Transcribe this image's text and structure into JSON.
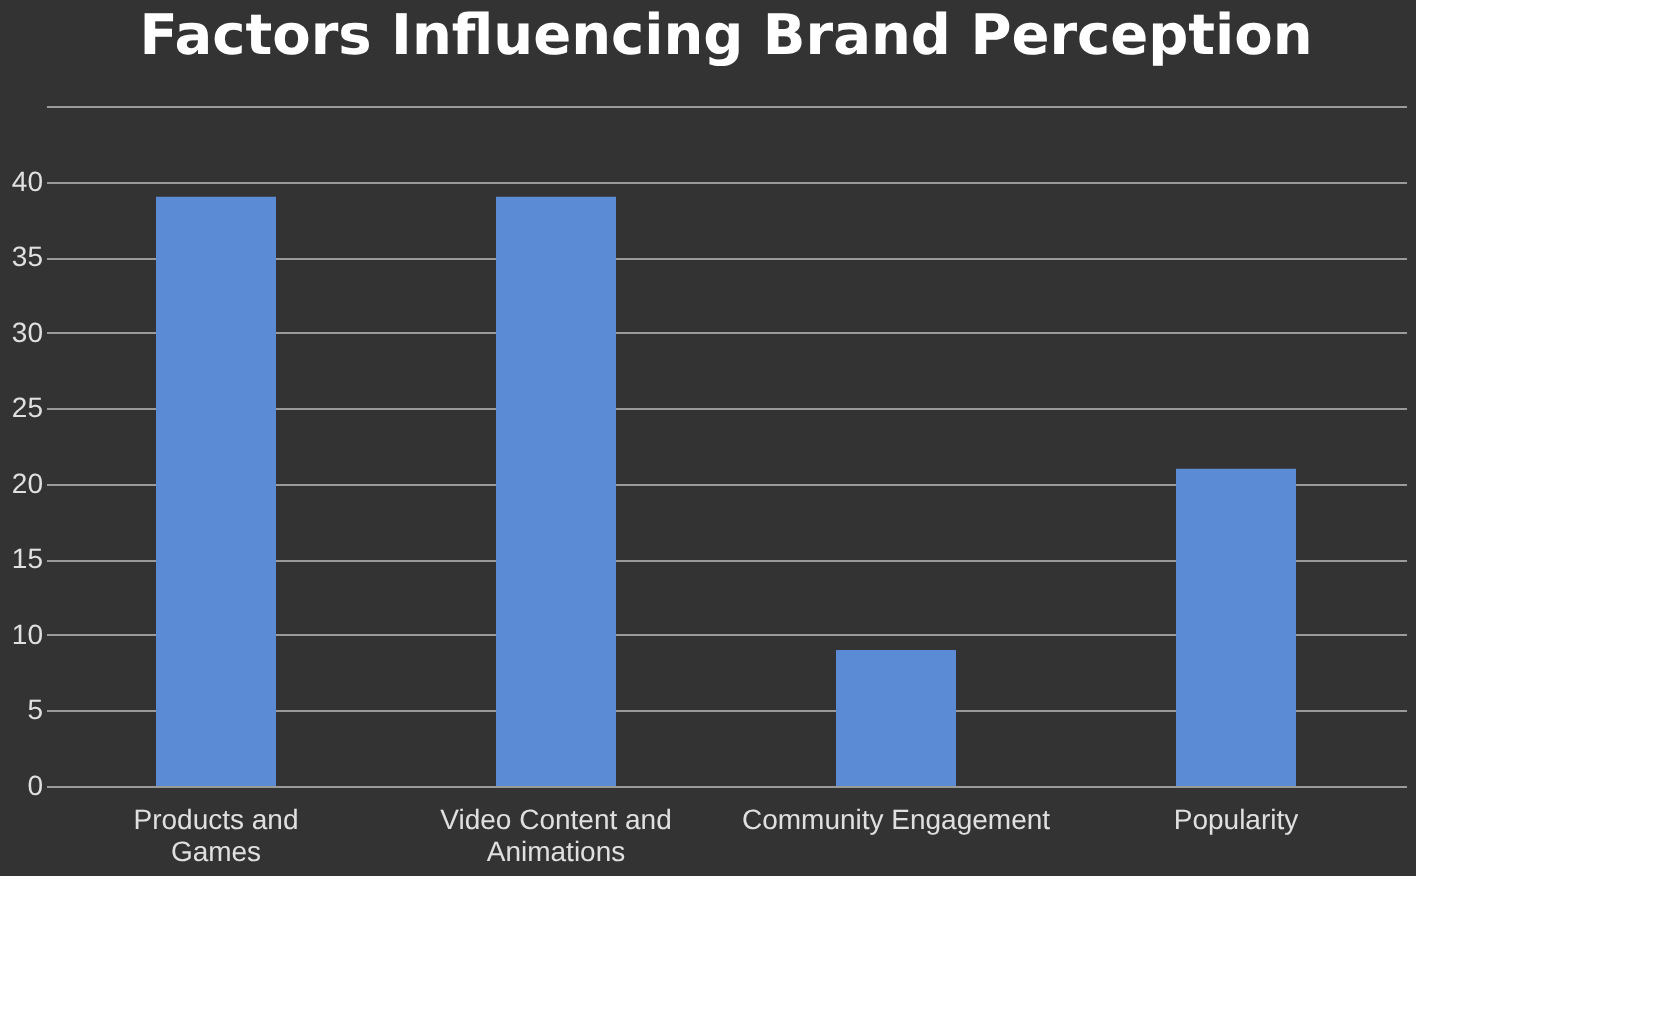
{
  "chart_data": {
    "type": "bar",
    "title": "Factors Influencing Brand Perception",
    "categories": [
      "Products and Games",
      "Video Content and Animations",
      "Community Engagement",
      "Popularity"
    ],
    "values": [
      39,
      39,
      9,
      21
    ],
    "color": "#5b8bd4",
    "ylim": [
      0,
      45
    ],
    "yticks": [
      0,
      5,
      10,
      15,
      20,
      25,
      30,
      35,
      40,
      {
        "value": 45,
        "label": null
      }
    ],
    "grid": "y"
  }
}
